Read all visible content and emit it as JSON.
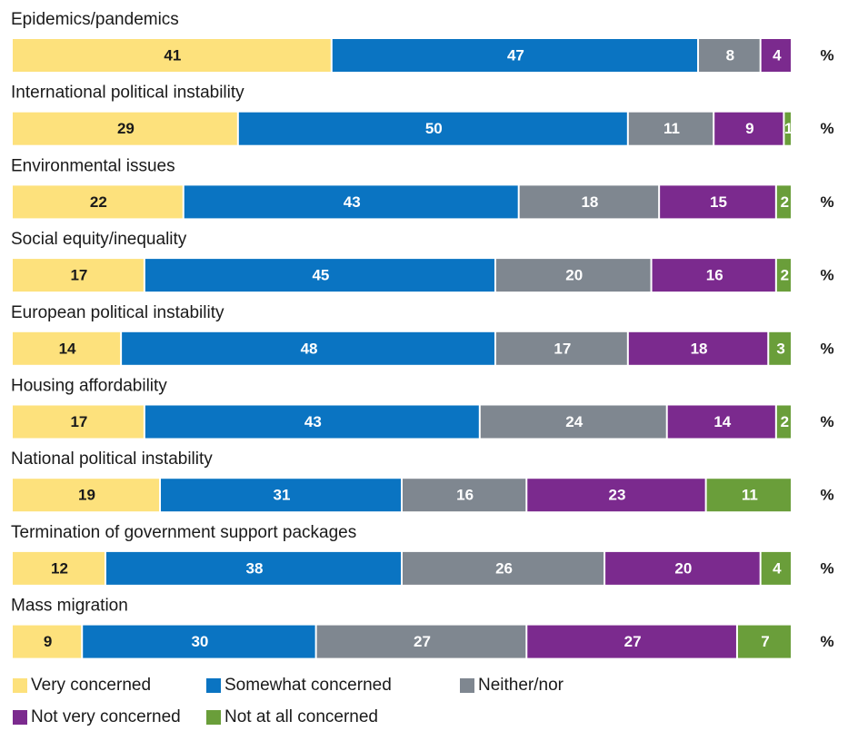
{
  "chart_data": {
    "type": "bar",
    "orientation": "horizontal-stacked",
    "unit": "%",
    "categories": [
      "Epidemics/pandemics",
      "International political instability",
      "Environmental issues",
      "Social equity/inequality",
      "European political instability",
      "Housing affordability",
      "National political instability",
      "Termination of government support packages",
      "Mass migration"
    ],
    "series": [
      {
        "name": "Very concerned",
        "color": "#fde17c",
        "text_color": "#1a1a1a",
        "values": [
          41,
          29,
          22,
          17,
          14,
          17,
          19,
          12,
          9
        ]
      },
      {
        "name": "Somewhat concerned",
        "color": "#0a74c2",
        "text_color": "#ffffff",
        "values": [
          47,
          50,
          43,
          45,
          48,
          43,
          31,
          38,
          30
        ]
      },
      {
        "name": "Neither/nor",
        "color": "#7f8790",
        "text_color": "#ffffff",
        "values": [
          8,
          11,
          18,
          20,
          17,
          24,
          16,
          26,
          27
        ]
      },
      {
        "name": "Not very concerned",
        "color": "#7b2a8e",
        "text_color": "#ffffff",
        "values": [
          4,
          9,
          15,
          16,
          18,
          14,
          23,
          20,
          27
        ]
      },
      {
        "name": "Not at all concerned",
        "color": "#6a9e3a",
        "text_color": "#ffffff",
        "values": [
          null,
          1,
          2,
          2,
          3,
          2,
          11,
          4,
          7
        ]
      }
    ],
    "legend_position": "bottom",
    "grid": false
  }
}
